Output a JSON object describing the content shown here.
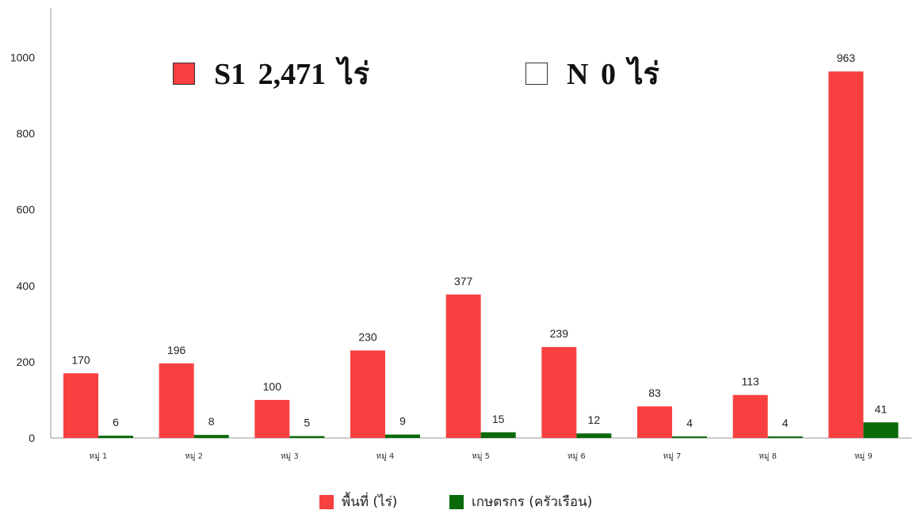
{
  "colors": {
    "series_area": "#f84040",
    "series_farmers": "#0a6a0a",
    "box_none": "#ffffff"
  },
  "summary": [
    {
      "label": "S1  2,471 ไร่",
      "color": "#f84040"
    },
    {
      "label": "N  0 ไร่",
      "color": "#ffffff"
    }
  ],
  "chart_data": {
    "type": "bar",
    "categories": [
      "หมู่ 1",
      "หมู่ 2",
      "หมู่ 3",
      "หมู่ 4",
      "หมู่ 5",
      "หมู่ 6",
      "หมู่ 7",
      "หมู่ 8",
      "หมู่ 9"
    ],
    "series": [
      {
        "name": "พื้นที่ (ไร่)",
        "color": "#f84040",
        "values": [
          170,
          196,
          100,
          230,
          377,
          239,
          83,
          113,
          963
        ]
      },
      {
        "name": "เกษตรกร (ครัวเรือน)",
        "color": "#0a6a0a",
        "values": [
          6,
          8,
          5,
          9,
          15,
          12,
          4,
          4,
          41
        ]
      }
    ],
    "yticks": [
      0,
      200,
      400,
      600,
      800,
      1000
    ],
    "ylim": [
      0,
      1130
    ],
    "grid": false,
    "legend_position": "bottom",
    "title": "",
    "xlabel": "",
    "ylabel": ""
  }
}
